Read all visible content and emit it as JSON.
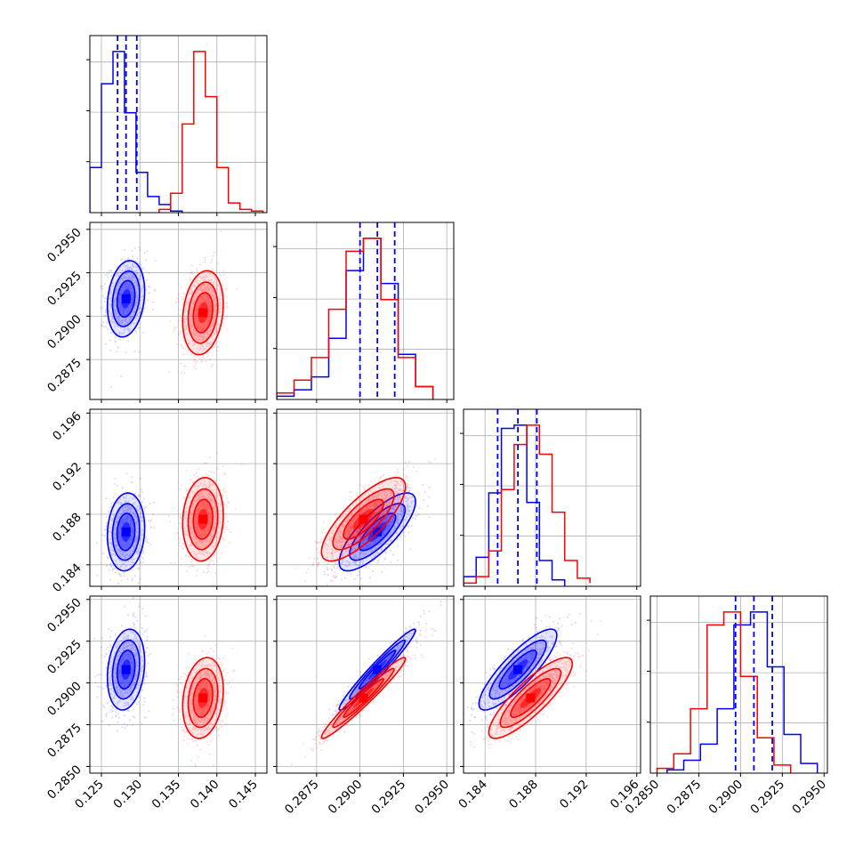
{
  "chart_data": {
    "type": "corner",
    "title": "",
    "parameters": [
      {
        "ticks": [
          "0.125",
          "0.130",
          "0.135",
          "0.140",
          "0.145"
        ],
        "tick_values": [
          0.125,
          0.13,
          0.135,
          0.14,
          0.145
        ],
        "range": [
          0.1235,
          0.1465
        ]
      },
      {
        "ticks": [
          "0.2875",
          "0.2900",
          "0.2925",
          "0.2950"
        ],
        "tick_values": [
          0.2875,
          0.29,
          0.2925,
          0.295
        ],
        "range": [
          0.2852,
          0.2954
        ]
      },
      {
        "ticks": [
          "0.184",
          "0.188",
          "0.192",
          "0.196"
        ],
        "tick_values": [
          0.184,
          0.188,
          0.192,
          0.196
        ],
        "range": [
          0.1823,
          0.1963
        ]
      },
      {
        "ticks": [
          "0.2850",
          "0.2875",
          "0.2900",
          "0.2925",
          "0.2950"
        ],
        "tick_values": [
          0.285,
          0.2875,
          0.29,
          0.2925,
          0.295
        ],
        "range": [
          0.2846,
          0.2952
        ]
      }
    ],
    "grid": true,
    "series": [
      {
        "color": "#0000ff",
        "mean": [
          0.1282,
          0.291,
          0.1866,
          0.2908
        ],
        "sigma": [
          0.0011,
          0.001,
          0.0014,
          0.0011
        ],
        "corr": [
          [
            1,
            0.2,
            0.1,
            0.2
          ],
          [
            0.2,
            1,
            0.78,
            0.97
          ],
          [
            0.1,
            0.78,
            1,
            0.85
          ],
          [
            0.2,
            0.97,
            0.85,
            1
          ]
        ],
        "quantiles": [
          [
            0.1271,
            0.1282,
            0.1296
          ],
          [
            0.29,
            0.291,
            0.292
          ],
          [
            0.185,
            0.1866,
            0.1881
          ],
          [
            0.2897,
            0.2908,
            0.2919
          ]
        ],
        "histograms": [
          {
            "edges": [
              0.1235,
              0.125,
              0.1265,
              0.128,
              0.1295,
              0.131,
              0.1325,
              0.134,
              0.1355
            ],
            "counts": [
              0.28,
              0.8,
              1.0,
              0.62,
              0.25,
              0.1,
              0.05,
              0.01
            ]
          },
          {
            "edges": [
              0.2852,
              0.2862,
              0.2872,
              0.2882,
              0.2892,
              0.2902,
              0.2912,
              0.2922,
              0.2932,
              0.2942
            ],
            "counts": [
              0.02,
              0.06,
              0.14,
              0.38,
              0.8,
              1.0,
              0.72,
              0.28,
              0.08
            ]
          },
          {
            "edges": [
              0.1823,
              0.1833,
              0.1843,
              0.1853,
              0.1863,
              0.1873,
              0.1883,
              0.1893,
              0.1903
            ],
            "counts": [
              0.06,
              0.18,
              0.58,
              0.98,
              1.0,
              0.52,
              0.16,
              0.04
            ]
          },
          {
            "edges": [
              0.2856,
              0.2866,
              0.2876,
              0.2886,
              0.2896,
              0.2906,
              0.2916,
              0.2926,
              0.2936,
              0.2946
            ],
            "counts": [
              0.02,
              0.08,
              0.18,
              0.4,
              0.92,
              1.0,
              0.66,
              0.24,
              0.06
            ]
          }
        ]
      },
      {
        "color": "#ff0000",
        "mean": [
          0.1382,
          0.2902,
          0.1876,
          0.2891
        ],
        "sigma": [
          0.0012,
          0.0011,
          0.0015,
          0.0011
        ],
        "corr": [
          [
            1,
            0.2,
            0.1,
            0.2
          ],
          [
            0.2,
            1,
            0.78,
            0.97
          ],
          [
            0.1,
            0.78,
            1,
            0.85
          ],
          [
            0.2,
            0.97,
            0.85,
            1
          ]
        ],
        "quantiles": [],
        "histograms": [
          {
            "edges": [
              0.1325,
              0.134,
              0.1355,
              0.137,
              0.1385,
              0.14,
              0.1415,
              0.143,
              0.1445,
              0.146
            ],
            "counts": [
              0.02,
              0.12,
              0.55,
              1.0,
              0.72,
              0.28,
              0.06,
              0.02,
              0.01
            ]
          },
          {
            "edges": [
              0.2852,
              0.2862,
              0.2872,
              0.2882,
              0.2892,
              0.2902,
              0.2912,
              0.2922,
              0.2932,
              0.2942
            ],
            "counts": [
              0.04,
              0.12,
              0.26,
              0.56,
              0.92,
              1.0,
              0.62,
              0.26,
              0.08
            ]
          },
          {
            "edges": [
              0.1823,
              0.1833,
              0.1843,
              0.1853,
              0.1863,
              0.1873,
              0.1883,
              0.1893,
              0.1903,
              0.1913,
              0.1923
            ],
            "counts": [
              0.02,
              0.06,
              0.22,
              0.6,
              0.88,
              1.0,
              0.82,
              0.46,
              0.16,
              0.05,
              0.02
            ]
          },
          {
            "edges": [
              0.285,
              0.286,
              0.287,
              0.288,
              0.289,
              0.29,
              0.291,
              0.292,
              0.293
            ],
            "counts": [
              0.03,
              0.12,
              0.4,
              0.92,
              1.0,
              0.6,
              0.22,
              0.05
            ]
          }
        ]
      }
    ]
  }
}
